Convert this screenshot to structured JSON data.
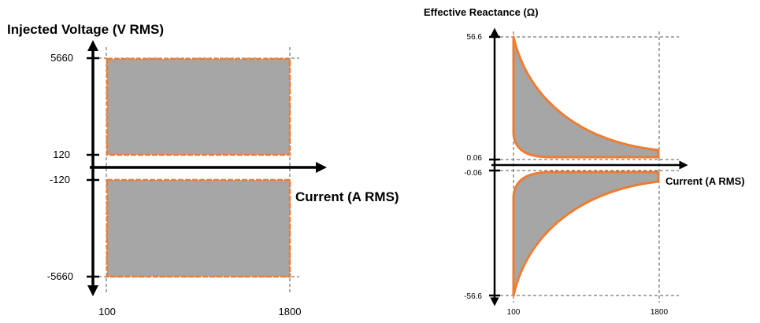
{
  "left_diagram": {
    "y_axis_title": "Injected Voltage (V RMS)",
    "x_axis_title": "Current (A RMS)",
    "y_ticks": [
      "5660",
      "120",
      "-120",
      "-5660"
    ],
    "x_ticks": [
      "100",
      "1800"
    ]
  },
  "right_diagram": {
    "y_axis_title": "Effective Reactance (Ω)",
    "x_axis_title": "Current (A RMS)",
    "y_ticks": [
      "56.6",
      "0.06",
      "-0.06",
      "-56.6"
    ],
    "x_ticks": [
      "100",
      "1800"
    ]
  },
  "colors": {
    "region_fill": "#a6a6a6",
    "region_outline": "#ed7d31",
    "axis": "#000000",
    "guide": "#555555"
  }
}
